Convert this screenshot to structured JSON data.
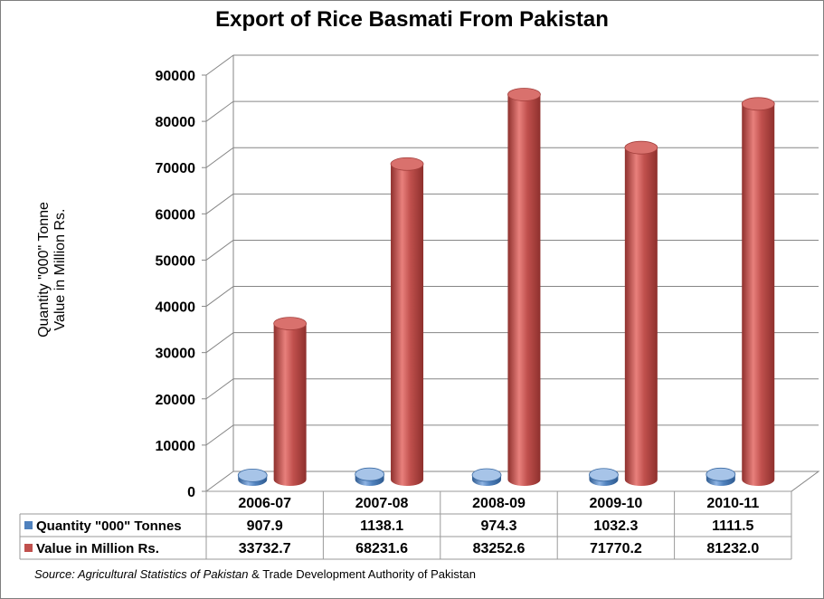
{
  "chart_data": {
    "type": "bar",
    "title": "Export of Rice Basmati From Pakistan",
    "ylabel_lines": [
      "Quantity \"000\" Tonne",
      "Value in Million Rs."
    ],
    "ylim": [
      0,
      90000
    ],
    "yticks": [
      "0",
      "10000",
      "20000",
      "30000",
      "40000",
      "50000",
      "60000",
      "70000",
      "80000",
      "90000"
    ],
    "categories": [
      "2006-07",
      "2007-08",
      "2008-09",
      "2009-10",
      "2010-11"
    ],
    "series": [
      {
        "name": "Quantity \"000\" Tonnes",
        "values": [
          907.9,
          1138.1,
          974.3,
          1032.3,
          1111.5
        ],
        "labels": [
          "907.9",
          "1138.1",
          "974.3",
          "1032.3",
          "1111.5"
        ],
        "color": "#4f81bd"
      },
      {
        "name": "Value in Million Rs.",
        "values": [
          33732.7,
          68231.6,
          83252.6,
          71770.2,
          81232.0
        ],
        "labels": [
          "33732.7",
          "68231.6",
          "83252.6",
          "71770.2",
          "81232.0"
        ],
        "color": "#c0504d"
      }
    ],
    "grid": true,
    "legend": "data-table"
  },
  "source": {
    "prefix": "Source: ",
    "part1": "Agricultural Statistics of Pakistan",
    "amp": " & ",
    "part2": "Trade Development Authority of Pakistan"
  }
}
